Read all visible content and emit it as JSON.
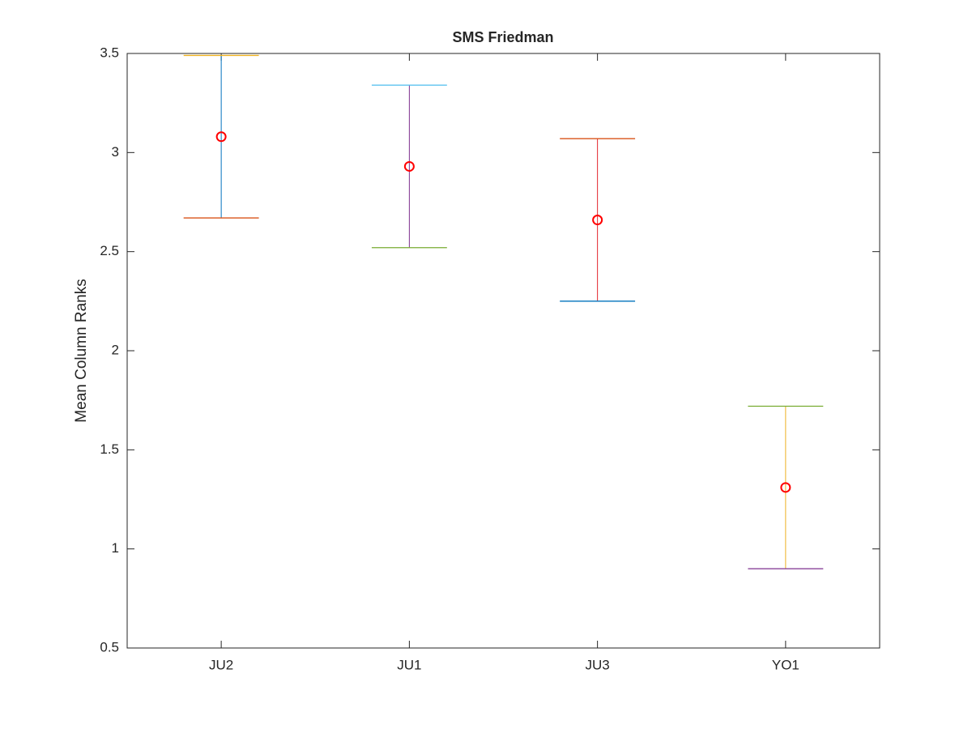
{
  "chart_data": {
    "type": "errorbar",
    "title": "SMS Friedman",
    "y_label": "Mean Column Ranks",
    "categories": [
      "JU2",
      "JU1",
      "JU3",
      "YO1"
    ],
    "series": [
      {
        "values": [
          3.08,
          2.93,
          2.66,
          1.31
        ],
        "errors": [
          0.41,
          0.41,
          0.41,
          0.41
        ],
        "color": "#ff0000",
        "line_colors": [
          "#0072bd",
          "#7e2f8e",
          "#e3262f",
          "#edb120"
        ],
        "upper_cap_colors": [
          "#edb120",
          "#4dbeee",
          "#d95319",
          "#77ac30"
        ],
        "lower_cap_colors": [
          "#d95319",
          "#77ac30",
          "#0072bd",
          "#7e2f8e"
        ]
      }
    ],
    "ylim": [
      0.5,
      3.5
    ],
    "yticks": [
      0.5,
      1,
      1.5,
      2,
      2.5,
      3,
      3.5
    ],
    "grid": false
  }
}
